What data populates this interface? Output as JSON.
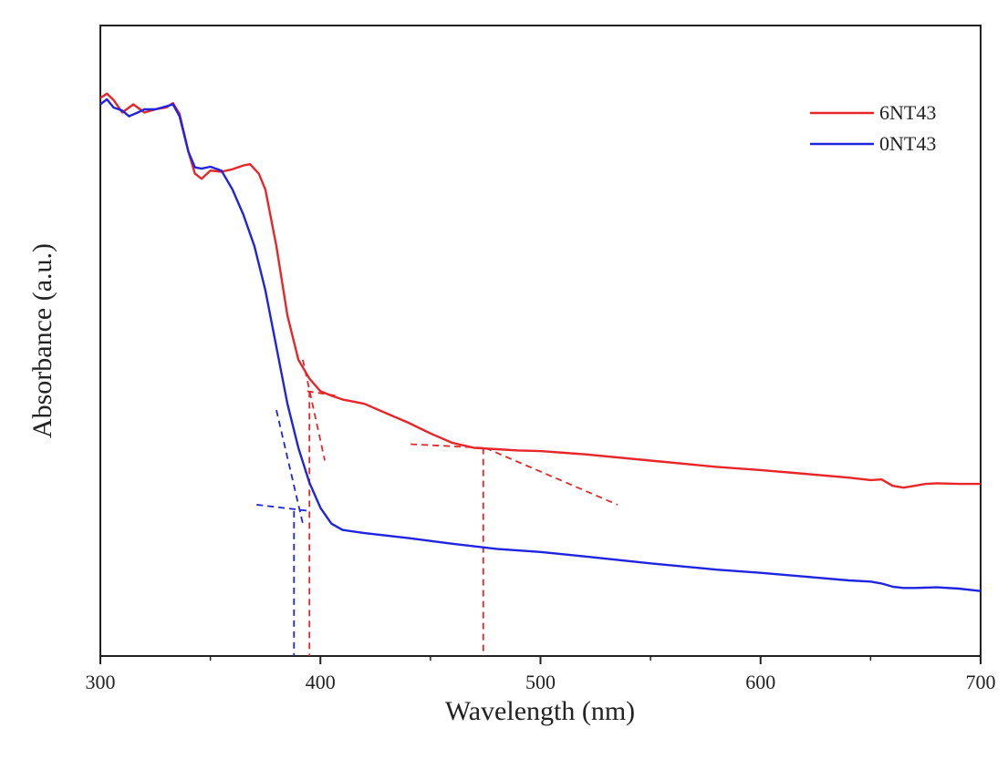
{
  "chart_data": {
    "type": "line",
    "title": "",
    "xlabel": "Wavelength (nm)",
    "ylabel": "Absorbance (a.u.)",
    "xlim": [
      300,
      700
    ],
    "ylim": [
      0,
      1
    ],
    "x_ticks": [
      "300",
      "400",
      "500",
      "600",
      "700"
    ],
    "x_tick_values": [
      300,
      400,
      500,
      600,
      700
    ],
    "y_ticks_shown": false,
    "grid": false,
    "legend_position": "top-right",
    "series": [
      {
        "name": "6NT43",
        "color": "#e8262a",
        "x": [
          300,
          303,
          306,
          310,
          315,
          320,
          325,
          330,
          333,
          336,
          340,
          343,
          346,
          350,
          355,
          360,
          365,
          368,
          372,
          375,
          380,
          385,
          390,
          395,
          400,
          405,
          410,
          420,
          430,
          440,
          450,
          460,
          470,
          480,
          490,
          500,
          520,
          550,
          580,
          600,
          620,
          640,
          650,
          655,
          660,
          665,
          670,
          675,
          680,
          690,
          700
        ],
        "y": [
          0.885,
          0.892,
          0.882,
          0.862,
          0.875,
          0.862,
          0.867,
          0.87,
          0.877,
          0.86,
          0.8,
          0.765,
          0.757,
          0.77,
          0.768,
          0.772,
          0.778,
          0.78,
          0.765,
          0.74,
          0.65,
          0.54,
          0.47,
          0.44,
          0.42,
          0.413,
          0.407,
          0.4,
          0.385,
          0.37,
          0.353,
          0.338,
          0.33,
          0.328,
          0.326,
          0.325,
          0.32,
          0.31,
          0.3,
          0.295,
          0.289,
          0.283,
          0.279,
          0.28,
          0.27,
          0.267,
          0.27,
          0.273,
          0.274,
          0.273,
          0.273
        ]
      },
      {
        "name": "0NT43",
        "color": "#1f24e0",
        "x": [
          300,
          303,
          306,
          310,
          313,
          317,
          320,
          325,
          330,
          333,
          336,
          340,
          343,
          346,
          350,
          355,
          360,
          365,
          370,
          375,
          380,
          385,
          390,
          395,
          400,
          405,
          410,
          420,
          440,
          460,
          480,
          500,
          520,
          550,
          580,
          600,
          620,
          640,
          650,
          655,
          660,
          665,
          670,
          680,
          690,
          700
        ],
        "y": [
          0.875,
          0.883,
          0.87,
          0.865,
          0.856,
          0.862,
          0.867,
          0.867,
          0.872,
          0.875,
          0.856,
          0.8,
          0.775,
          0.773,
          0.776,
          0.77,
          0.74,
          0.7,
          0.65,
          0.58,
          0.49,
          0.4,
          0.33,
          0.275,
          0.235,
          0.21,
          0.2,
          0.195,
          0.187,
          0.178,
          0.17,
          0.165,
          0.158,
          0.147,
          0.137,
          0.132,
          0.126,
          0.12,
          0.118,
          0.115,
          0.11,
          0.108,
          0.108,
          0.109,
          0.107,
          0.103
        ]
      }
    ],
    "annotations": [
      {
        "type": "tangent-line",
        "color": "#e8262a",
        "x": [
          392,
          402
        ],
        "y": [
          0.47,
          0.31
        ]
      },
      {
        "type": "tangent-line",
        "color": "#e8262a",
        "x": [
          394,
          407
        ],
        "y": [
          0.42,
          0.413
        ]
      },
      {
        "type": "tangent-line",
        "color": "#e8262a",
        "x": [
          441,
          475
        ],
        "y": [
          0.336,
          0.33
        ]
      },
      {
        "type": "tangent-line",
        "color": "#e8262a",
        "x": [
          475,
          535
        ],
        "y": [
          0.33,
          0.24
        ]
      },
      {
        "type": "drop-line",
        "color": "#e8262a",
        "x": [
          395,
          395
        ],
        "y": [
          0.42,
          0
        ]
      },
      {
        "type": "drop-line",
        "color": "#e8262a",
        "x": [
          474,
          474
        ],
        "y": [
          0.33,
          0
        ]
      },
      {
        "type": "tangent-line",
        "color": "#1f24e0",
        "x": [
          380,
          392
        ],
        "y": [
          0.39,
          0.21
        ]
      },
      {
        "type": "tangent-line",
        "color": "#1f24e0",
        "x": [
          371,
          395
        ],
        "y": [
          0.24,
          0.23
        ]
      },
      {
        "type": "drop-line",
        "color": "#1f24e0",
        "x": [
          388,
          388
        ],
        "y": [
          0.23,
          0
        ]
      }
    ]
  }
}
